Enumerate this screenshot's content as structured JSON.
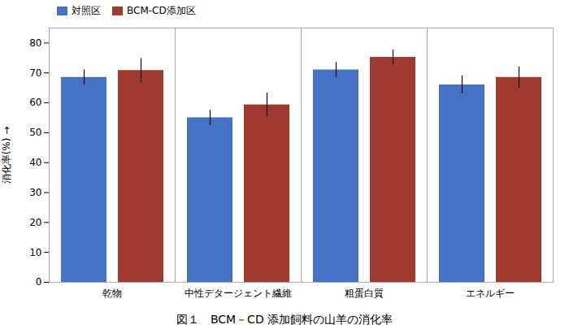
{
  "chart_data": {
    "type": "bar",
    "title": "図１　BCM－CD 添加飼料の山羊の消化率",
    "ylabel": "消化率(%)",
    "categories": [
      "乾物",
      "中性デタージェント繊維",
      "粗蛋白質",
      "エネルギー"
    ],
    "series": [
      {
        "name": "対照区",
        "color": "#4472c4",
        "values": [
          68.5,
          55.0,
          71.0,
          66.0
        ],
        "errors": [
          2.5,
          2.5,
          2.5,
          3.0
        ]
      },
      {
        "name": "BCM-CD添加区",
        "color": "#9e3a2e",
        "values": [
          70.8,
          59.3,
          75.2,
          68.5
        ],
        "errors": [
          4.0,
          4.0,
          2.5,
          3.5
        ]
      }
    ],
    "ylim": [
      0,
      85
    ],
    "yticks": [
      0,
      10,
      20,
      30,
      40,
      50,
      60,
      70,
      80
    ],
    "legend": "top-left",
    "grid": false
  }
}
